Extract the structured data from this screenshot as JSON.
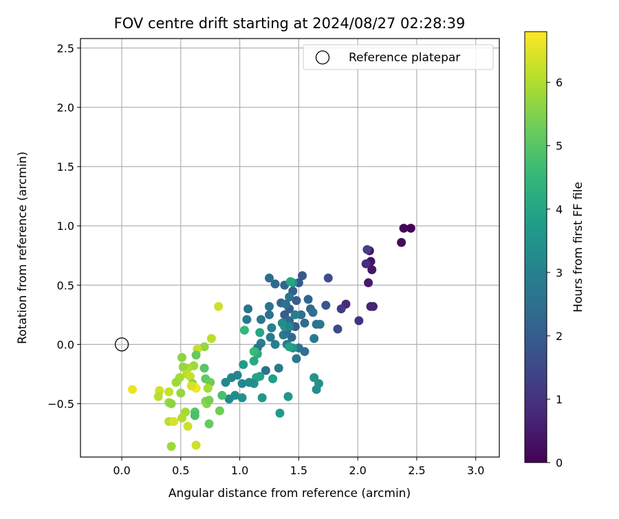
{
  "chart_data": {
    "type": "scatter",
    "title": "FOV centre drift starting at 2024/08/27 02:28:39",
    "xlabel": "Angular distance from reference (arcmin)",
    "ylabel": "Rotation from reference (arcmin)",
    "xlim": [
      -0.35,
      3.2
    ],
    "ylim": [
      -0.95,
      2.58
    ],
    "xticks": [
      0.0,
      0.5,
      1.0,
      1.5,
      2.0,
      2.5,
      3.0
    ],
    "xtick_labels": [
      "0.0",
      "0.5",
      "1.0",
      "1.5",
      "2.0",
      "2.5",
      "3.0"
    ],
    "yticks": [
      -0.5,
      0.0,
      0.5,
      1.0,
      1.5,
      2.0,
      2.5
    ],
    "ytick_labels": [
      "−0.5",
      "0.0",
      "0.5",
      "1.0",
      "1.5",
      "2.0",
      "2.5"
    ],
    "grid": true,
    "legend": {
      "placement": "top-right",
      "entries": [
        "Reference platepar"
      ]
    },
    "reference_point": {
      "x": 0.0,
      "y": 0.0
    },
    "colorbar": {
      "label": "Hours from first FF file",
      "range": [
        0,
        6.8
      ],
      "ticks": [
        0,
        1,
        2,
        3,
        4,
        5,
        6
      ],
      "tick_labels": [
        "0",
        "1",
        "2",
        "3",
        "4",
        "5",
        "6"
      ],
      "colormap": "viridis"
    },
    "points": [
      {
        "x": 2.45,
        "y": 0.98,
        "h": 0.0
      },
      {
        "x": 2.39,
        "y": 0.98,
        "h": 0.1
      },
      {
        "x": 2.37,
        "y": 0.86,
        "h": 0.2
      },
      {
        "x": 2.1,
        "y": 0.79,
        "h": 0.3
      },
      {
        "x": 2.11,
        "y": 0.7,
        "h": 0.35
      },
      {
        "x": 2.12,
        "y": 0.63,
        "h": 0.4
      },
      {
        "x": 2.09,
        "y": 0.52,
        "h": 0.5
      },
      {
        "x": 2.13,
        "y": 0.32,
        "h": 0.6
      },
      {
        "x": 2.11,
        "y": 0.32,
        "h": 0.7
      },
      {
        "x": 1.9,
        "y": 0.34,
        "h": 0.8
      },
      {
        "x": 2.07,
        "y": 0.68,
        "h": 0.9
      },
      {
        "x": 2.08,
        "y": 0.8,
        "h": 1.3
      },
      {
        "x": 2.01,
        "y": 0.2,
        "h": 1.0
      },
      {
        "x": 1.86,
        "y": 0.3,
        "h": 1.2
      },
      {
        "x": 1.83,
        "y": 0.13,
        "h": 1.5
      },
      {
        "x": 1.75,
        "y": 0.56,
        "h": 1.6
      },
      {
        "x": 1.73,
        "y": 0.33,
        "h": 1.8
      },
      {
        "x": 1.53,
        "y": 0.58,
        "h": 1.9
      },
      {
        "x": 1.5,
        "y": 0.52,
        "h": 1.9
      },
      {
        "x": 1.48,
        "y": 0.37,
        "h": 2.0
      },
      {
        "x": 1.42,
        "y": 0.3,
        "h": 2.0
      },
      {
        "x": 1.45,
        "y": 0.45,
        "h": 2.1
      },
      {
        "x": 1.38,
        "y": 0.5,
        "h": 2.2
      },
      {
        "x": 1.3,
        "y": 0.51,
        "h": 2.3
      },
      {
        "x": 1.25,
        "y": 0.56,
        "h": 2.4
      },
      {
        "x": 1.35,
        "y": 0.35,
        "h": 2.2
      },
      {
        "x": 1.38,
        "y": 0.25,
        "h": 2.1
      },
      {
        "x": 1.42,
        "y": 0.2,
        "h": 2.3
      },
      {
        "x": 1.47,
        "y": 0.15,
        "h": 2.0
      },
      {
        "x": 1.52,
        "y": 0.25,
        "h": 2.5
      },
      {
        "x": 1.55,
        "y": 0.18,
        "h": 2.4
      },
      {
        "x": 1.58,
        "y": 0.38,
        "h": 2.2
      },
      {
        "x": 1.6,
        "y": 0.3,
        "h": 2.3
      },
      {
        "x": 1.62,
        "y": 0.27,
        "h": 2.5
      },
      {
        "x": 1.65,
        "y": 0.17,
        "h": 2.6
      },
      {
        "x": 1.68,
        "y": 0.17,
        "h": 2.7
      },
      {
        "x": 1.63,
        "y": 0.05,
        "h": 2.8
      },
      {
        "x": 1.55,
        "y": -0.06,
        "h": 2.5
      },
      {
        "x": 1.5,
        "y": -0.03,
        "h": 2.6
      },
      {
        "x": 1.48,
        "y": -0.12,
        "h": 2.7
      },
      {
        "x": 1.4,
        "y": 0.0,
        "h": 2.8
      },
      {
        "x": 1.37,
        "y": 0.08,
        "h": 2.7
      },
      {
        "x": 1.3,
        "y": 0.0,
        "h": 2.9
      },
      {
        "x": 1.26,
        "y": 0.06,
        "h": 2.8
      },
      {
        "x": 1.27,
        "y": 0.14,
        "h": 3.0
      },
      {
        "x": 1.25,
        "y": 0.25,
        "h": 2.5
      },
      {
        "x": 1.25,
        "y": 0.32,
        "h": 2.6
      },
      {
        "x": 1.18,
        "y": 0.21,
        "h": 2.7
      },
      {
        "x": 1.07,
        "y": 0.3,
        "h": 2.6
      },
      {
        "x": 1.06,
        "y": 0.21,
        "h": 2.8
      },
      {
        "x": 1.18,
        "y": 0.01,
        "h": 2.9
      },
      {
        "x": 1.15,
        "y": -0.03,
        "h": 2.5
      },
      {
        "x": 1.22,
        "y": -0.22,
        "h": 2.6
      },
      {
        "x": 1.33,
        "y": -0.2,
        "h": 2.8
      },
      {
        "x": 1.4,
        "y": 0.12,
        "h": 2.4
      },
      {
        "x": 1.44,
        "y": 0.06,
        "h": 2.3
      },
      {
        "x": 1.42,
        "y": 0.4,
        "h": 2.6
      },
      {
        "x": 1.39,
        "y": 0.34,
        "h": 2.5
      },
      {
        "x": 1.47,
        "y": 0.25,
        "h": 2.9
      },
      {
        "x": 1.45,
        "y": 0.52,
        "h": 3.5
      },
      {
        "x": 1.43,
        "y": 0.53,
        "h": 4.0
      },
      {
        "x": 1.36,
        "y": 0.18,
        "h": 3.2
      },
      {
        "x": 1.38,
        "y": 0.15,
        "h": 3.4
      },
      {
        "x": 1.42,
        "y": 0.15,
        "h": 3.1
      },
      {
        "x": 1.45,
        "y": -0.03,
        "h": 3.6
      },
      {
        "x": 1.42,
        "y": -0.02,
        "h": 3.9
      },
      {
        "x": 1.17,
        "y": 0.1,
        "h": 4.0
      },
      {
        "x": 1.13,
        "y": -0.06,
        "h": 3.8
      },
      {
        "x": 1.15,
        "y": -0.08,
        "h": 4.2
      },
      {
        "x": 1.12,
        "y": -0.14,
        "h": 4.1
      },
      {
        "x": 1.12,
        "y": -0.06,
        "h": 4.6
      },
      {
        "x": 1.04,
        "y": 0.12,
        "h": 4.5
      },
      {
        "x": 1.03,
        "y": -0.17,
        "h": 3.7
      },
      {
        "x": 1.17,
        "y": -0.27,
        "h": 3.9
      },
      {
        "x": 1.14,
        "y": -0.28,
        "h": 4.0
      },
      {
        "x": 1.28,
        "y": -0.29,
        "h": 3.8
      },
      {
        "x": 1.12,
        "y": -0.33,
        "h": 3.4
      },
      {
        "x": 1.08,
        "y": -0.32,
        "h": 3.3
      },
      {
        "x": 1.02,
        "y": -0.33,
        "h": 3.2
      },
      {
        "x": 0.98,
        "y": -0.26,
        "h": 3.1
      },
      {
        "x": 0.93,
        "y": -0.28,
        "h": 3.1
      },
      {
        "x": 0.88,
        "y": -0.32,
        "h": 3.2
      },
      {
        "x": 0.91,
        "y": -0.46,
        "h": 3.2
      },
      {
        "x": 0.96,
        "y": -0.43,
        "h": 3.3
      },
      {
        "x": 1.02,
        "y": -0.45,
        "h": 3.4
      },
      {
        "x": 1.19,
        "y": -0.45,
        "h": 3.6
      },
      {
        "x": 1.41,
        "y": -0.44,
        "h": 3.6
      },
      {
        "x": 1.34,
        "y": -0.58,
        "h": 3.7
      },
      {
        "x": 1.63,
        "y": -0.28,
        "h": 3.5
      },
      {
        "x": 1.67,
        "y": -0.33,
        "h": 3.4
      },
      {
        "x": 1.65,
        "y": -0.38,
        "h": 3.3
      },
      {
        "x": 0.85,
        "y": -0.43,
        "h": 4.8
      },
      {
        "x": 0.82,
        "y": 0.32,
        "h": 6.3
      },
      {
        "x": 0.76,
        "y": 0.05,
        "h": 6.1
      },
      {
        "x": 0.7,
        "y": -0.02,
        "h": 5.7
      },
      {
        "x": 0.64,
        "y": -0.04,
        "h": 6.2
      },
      {
        "x": 0.63,
        "y": -0.09,
        "h": 5.2
      },
      {
        "x": 0.7,
        "y": -0.2,
        "h": 5.0
      },
      {
        "x": 0.71,
        "y": -0.29,
        "h": 5.1
      },
      {
        "x": 0.75,
        "y": -0.32,
        "h": 5.3
      },
      {
        "x": 0.73,
        "y": -0.37,
        "h": 5.9
      },
      {
        "x": 0.71,
        "y": -0.48,
        "h": 5.5
      },
      {
        "x": 0.72,
        "y": -0.5,
        "h": 5.6
      },
      {
        "x": 0.74,
        "y": -0.47,
        "h": 5.4
      },
      {
        "x": 0.74,
        "y": -0.67,
        "h": 5.2
      },
      {
        "x": 0.61,
        "y": -0.18,
        "h": 5.8
      },
      {
        "x": 0.56,
        "y": -0.2,
        "h": 6.0
      },
      {
        "x": 0.52,
        "y": -0.19,
        "h": 5.7
      },
      {
        "x": 0.51,
        "y": -0.11,
        "h": 5.6
      },
      {
        "x": 0.55,
        "y": -0.25,
        "h": 6.1
      },
      {
        "x": 0.58,
        "y": -0.27,
        "h": 6.2
      },
      {
        "x": 0.6,
        "y": -0.33,
        "h": 5.6
      },
      {
        "x": 0.62,
        "y": -0.36,
        "h": 6.5
      },
      {
        "x": 0.63,
        "y": -0.37,
        "h": 6.7
      },
      {
        "x": 0.59,
        "y": -0.35,
        "h": 6.4
      },
      {
        "x": 0.49,
        "y": -0.28,
        "h": 5.9
      },
      {
        "x": 0.46,
        "y": -0.32,
        "h": 5.8
      },
      {
        "x": 0.5,
        "y": -0.41,
        "h": 5.7
      },
      {
        "x": 0.4,
        "y": -0.4,
        "h": 6.2
      },
      {
        "x": 0.32,
        "y": -0.39,
        "h": 6.3
      },
      {
        "x": 0.31,
        "y": -0.44,
        "h": 6.1
      },
      {
        "x": 0.4,
        "y": -0.49,
        "h": 5.8
      },
      {
        "x": 0.42,
        "y": -0.5,
        "h": 5.6
      },
      {
        "x": 0.54,
        "y": -0.57,
        "h": 5.9
      },
      {
        "x": 0.51,
        "y": -0.62,
        "h": 6.0
      },
      {
        "x": 0.4,
        "y": -0.65,
        "h": 6.1
      },
      {
        "x": 0.44,
        "y": -0.65,
        "h": 6.4
      },
      {
        "x": 0.56,
        "y": -0.69,
        "h": 6.3
      },
      {
        "x": 0.62,
        "y": -0.57,
        "h": 5.0
      },
      {
        "x": 0.62,
        "y": -0.6,
        "h": 4.8
      },
      {
        "x": 0.42,
        "y": -0.86,
        "h": 5.8
      },
      {
        "x": 0.63,
        "y": -0.85,
        "h": 6.3
      },
      {
        "x": 0.09,
        "y": -0.38,
        "h": 6.6
      },
      {
        "x": 0.83,
        "y": -0.56,
        "h": 5.3
      }
    ]
  }
}
